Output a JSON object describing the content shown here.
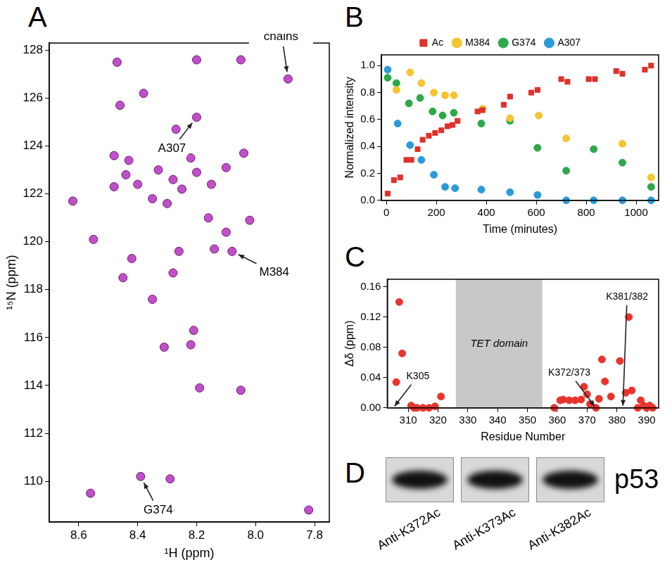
{
  "chart_data": [
    {
      "panel": "A",
      "type": "scatter",
      "x_label": "¹H (ppm)",
      "y_label": "¹⁵N (ppm)",
      "xlim": [
        8.7,
        7.75
      ],
      "ylim": [
        108.3,
        128.3
      ],
      "xticks": [
        8.6,
        8.4,
        8.2,
        {
          "value": 8,
          "label": "8.0"
        },
        7.8
      ],
      "yticks": [
        110,
        112,
        114,
        116,
        118,
        120,
        122,
        124,
        126,
        128
      ],
      "grid": false,
      "color": "#c050c8",
      "marker": "circle",
      "x": [
        8.56,
        8.29,
        7.82,
        8.39,
        8.29,
        8.19,
        8.05,
        8.31,
        8.22,
        8.21,
        8.45,
        8.42,
        8.28,
        8.35,
        8.26,
        8.14,
        8.08,
        8.1,
        8.02,
        8.55,
        8.16,
        8.62,
        8.48,
        8.44,
        8.4,
        8.35,
        8.33,
        8.3,
        8.28,
        8.25,
        8.2,
        8.15,
        8.1,
        8.43,
        8.22,
        8.48,
        8.04,
        8.27,
        8.46,
        8.2,
        8.38,
        7.89,
        8.47,
        8.2,
        8.05
      ],
      "values": [
        109.5,
        108.8,
        108.8,
        110.2,
        110.1,
        113.9,
        113.8,
        115.6,
        115.7,
        116.3,
        118.5,
        119.3,
        118.7,
        117.6,
        119.6,
        119.7,
        119.6,
        120.4,
        120.9,
        120.1,
        121.0,
        121.7,
        122.3,
        122.8,
        122.4,
        121.8,
        123.0,
        121.6,
        122.6,
        122.2,
        122.9,
        122.4,
        123.1,
        123.4,
        123.5,
        123.6,
        123.7,
        124.7,
        125.7,
        125.2,
        126.2,
        126.8,
        127.5,
        127.6,
        127.6
      ],
      "annotations": [
        {
          "text": "G374",
          "x": 8.39,
          "y": 110.2
        },
        {
          "text": "M384",
          "x": 8.08,
          "y": 119.6
        },
        {
          "text": "A307",
          "x": 8.2,
          "y": 125.2
        },
        {
          "text": "Ac-Lys side chains",
          "x": 7.89,
          "y": 126.8
        }
      ]
    },
    {
      "panel": "B",
      "type": "scatter",
      "x_label": "Time (minutes)",
      "y_label": "Normalized intensity",
      "xlim": [
        -20,
        1090
      ],
      "ylim": [
        0,
        1.08
      ],
      "xticks": [
        0,
        200,
        400,
        600,
        800,
        1000
      ],
      "yticks": [
        {
          "value": 0,
          "label": "0.0"
        },
        0.2,
        0.4,
        0.6,
        0.8,
        {
          "value": 1,
          "label": "1.0"
        }
      ],
      "grid": false,
      "legend": "top",
      "series": [
        {
          "name": "Ac",
          "color": "#e0312b",
          "marker": "square",
          "x": [
            5,
            30,
            55,
            80,
            100,
            125,
            145,
            170,
            195,
            220,
            245,
            265,
            285,
            365,
            385,
            470,
            495,
            580,
            605,
            700,
            725,
            810,
            835,
            920,
            945,
            1035,
            1060
          ],
          "values": [
            0.05,
            0.15,
            0.17,
            0.3,
            0.3,
            0.38,
            0.45,
            0.48,
            0.5,
            0.52,
            0.55,
            0.56,
            0.59,
            0.66,
            0.67,
            0.71,
            0.77,
            0.8,
            0.82,
            0.9,
            0.88,
            0.9,
            0.9,
            0.96,
            0.94,
            0.97,
            1.0
          ]
        },
        {
          "name": "M384",
          "color": "#f5c431",
          "marker": "circle",
          "x": [
            40,
            95,
            140,
            190,
            235,
            270,
            385,
            495,
            610,
            720,
            945,
            1060
          ],
          "values": [
            0.82,
            0.95,
            0.87,
            0.8,
            0.78,
            0.78,
            0.68,
            0.61,
            0.63,
            0.46,
            0.42,
            0.17
          ]
        },
        {
          "name": "G374",
          "color": "#2ea84a",
          "marker": "circle",
          "x": [
            5,
            40,
            90,
            135,
            185,
            225,
            270,
            380,
            495,
            605,
            720,
            830,
            945,
            1060
          ],
          "values": [
            0.91,
            0.87,
            0.72,
            0.76,
            0.66,
            0.63,
            0.65,
            0.57,
            0.59,
            0.39,
            0.22,
            0.38,
            0.28,
            0.1
          ]
        },
        {
          "name": "A307",
          "color": "#2b9ad8",
          "marker": "circle",
          "x": [
            5,
            45,
            95,
            140,
            190,
            235,
            275,
            380,
            495,
            605,
            720,
            830,
            945,
            1060
          ],
          "values": [
            0.97,
            0.57,
            0.41,
            0.3,
            0.19,
            0.1,
            0.09,
            0.08,
            0.06,
            0.04,
            0,
            0,
            0,
            0
          ]
        }
      ]
    },
    {
      "panel": "C",
      "type": "scatter",
      "x_label": "Residue Number",
      "y_label": "Δδ (ppm)",
      "xlim": [
        303,
        394
      ],
      "ylim": [
        0,
        0.17
      ],
      "xticks": [
        310,
        320,
        330,
        340,
        350,
        360,
        370,
        380,
        390
      ],
      "yticks": [
        {
          "value": 0,
          "label": "0.00"
        },
        0.04,
        0.08,
        0.12,
        0.16
      ],
      "grid": false,
      "color": "#e8342c",
      "marker": "circle",
      "x": [
        306,
        307,
        308,
        311,
        312,
        313,
        315,
        317,
        319,
        321,
        359,
        361,
        362,
        364,
        366,
        368,
        369,
        370,
        371,
        373,
        374,
        375,
        376,
        378,
        381,
        383,
        384,
        385,
        387,
        388,
        389,
        390,
        391,
        392
      ],
      "values": [
        0.034,
        0.14,
        0.072,
        0.003,
        0,
        0,
        0,
        0,
        0.002,
        0.015,
        0,
        0.01,
        0.011,
        0.01,
        0.01,
        0.011,
        0.028,
        0.018,
        0.005,
        0,
        0.012,
        0.064,
        0.035,
        0.015,
        0.062,
        0.02,
        0.12,
        0.023,
        0,
        0.01,
        0.003,
        0,
        0.003,
        0
      ],
      "regions": [
        {
          "from": 326,
          "to": 355,
          "label": "TET domain",
          "color": "#c8c8c8"
        }
      ],
      "annotations": [
        {
          "text": "K305",
          "x": 305,
          "y": 0
        },
        {
          "text": "K372/373",
          "x": 373,
          "y": 0
        },
        {
          "text": "K381/382",
          "x": 382,
          "y": 0
        }
      ]
    }
  ],
  "panel_d": {
    "panel": "D",
    "protein": "p53",
    "blots": [
      "Anti-K372Ac",
      "Anti-K373Ac",
      "Anti-K382Ac"
    ]
  }
}
